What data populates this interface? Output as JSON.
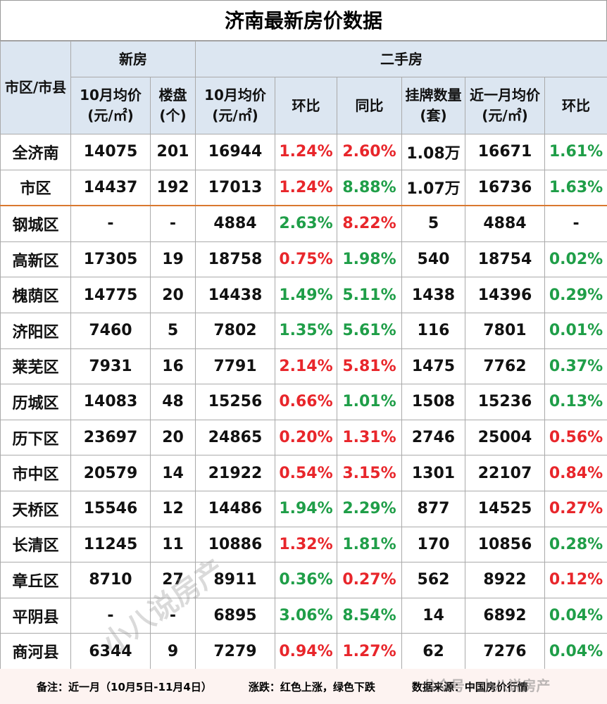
{
  "title": "济南最新房价数据",
  "table": {
    "header": {
      "row1": [
        "市区/市县",
        "新房",
        "二手房"
      ],
      "row2": [
        "10月均价(元/㎡)",
        "楼盘(个)",
        "10月均价(元/㎡)",
        "环比",
        "同比",
        "挂牌数量(套)",
        "近一月均价(元/㎡)",
        "环比"
      ]
    },
    "rows": [
      [
        "全济南",
        "14075",
        "201",
        "16944",
        {
          "text": "1.24%",
          "color": "#e8262b"
        },
        {
          "text": "2.60%",
          "color": "#e8262b"
        },
        "1.08万",
        "16671",
        {
          "text": "1.61%",
          "color": "#1f9e48"
        }
      ],
      [
        "市区",
        "14437",
        "192",
        "17013",
        {
          "text": "1.24%",
          "color": "#e8262b"
        },
        {
          "text": "8.88%",
          "color": "#1f9e48"
        },
        "1.07万",
        "16736",
        {
          "text": "1.63%",
          "color": "#1f9e48"
        }
      ],
      [
        "钢城区",
        "-",
        "-",
        "4884",
        {
          "text": "2.63%",
          "color": "#1f9e48"
        },
        {
          "text": "8.22%",
          "color": "#e8262b"
        },
        "5",
        "4884",
        "-"
      ],
      [
        "高新区",
        "17305",
        "19",
        "18758",
        {
          "text": "0.75%",
          "color": "#e8262b"
        },
        {
          "text": "1.98%",
          "color": "#1f9e48"
        },
        "540",
        "18754",
        {
          "text": "0.02%",
          "color": "#1f9e48"
        }
      ],
      [
        "槐荫区",
        "14775",
        "20",
        "14438",
        {
          "text": "1.49%",
          "color": "#1f9e48"
        },
        {
          "text": "5.11%",
          "color": "#1f9e48"
        },
        "1438",
        "14396",
        {
          "text": "0.29%",
          "color": "#1f9e48"
        }
      ],
      [
        "济阳区",
        "7460",
        "5",
        "7802",
        {
          "text": "1.35%",
          "color": "#1f9e48"
        },
        {
          "text": "5.61%",
          "color": "#1f9e48"
        },
        "116",
        "7801",
        {
          "text": "0.01%",
          "color": "#1f9e48"
        }
      ],
      [
        "莱芜区",
        "7931",
        "16",
        "7791",
        {
          "text": "2.14%",
          "color": "#e8262b"
        },
        {
          "text": "5.81%",
          "color": "#e8262b"
        },
        "1475",
        "7762",
        {
          "text": "0.37%",
          "color": "#1f9e48"
        }
      ],
      [
        "历城区",
        "14083",
        "48",
        "15256",
        {
          "text": "0.66%",
          "color": "#e8262b"
        },
        {
          "text": "1.01%",
          "color": "#1f9e48"
        },
        "1508",
        "15236",
        {
          "text": "0.13%",
          "color": "#1f9e48"
        }
      ],
      [
        "历下区",
        "23697",
        "20",
        "24865",
        {
          "text": "0.20%",
          "color": "#e8262b"
        },
        {
          "text": "1.31%",
          "color": "#e8262b"
        },
        "2746",
        "25004",
        {
          "text": "0.56%",
          "color": "#e8262b"
        }
      ],
      [
        "市中区",
        "20579",
        "14",
        "21922",
        {
          "text": "0.54%",
          "color": "#e8262b"
        },
        {
          "text": "3.15%",
          "color": "#e8262b"
        },
        "1301",
        "22107",
        {
          "text": "0.84%",
          "color": "#e8262b"
        }
      ],
      [
        "天桥区",
        "15546",
        "12",
        "14486",
        {
          "text": "1.94%",
          "color": "#1f9e48"
        },
        {
          "text": "2.29%",
          "color": "#1f9e48"
        },
        "877",
        "14525",
        {
          "text": "0.27%",
          "color": "#e8262b"
        }
      ],
      [
        "长清区",
        "11245",
        "11",
        "10886",
        {
          "text": "1.32%",
          "color": "#e8262b"
        },
        {
          "text": "1.81%",
          "color": "#1f9e48"
        },
        "170",
        "10856",
        {
          "text": "0.28%",
          "color": "#1f9e48"
        }
      ],
      [
        "章丘区",
        "8710",
        "27",
        "8911",
        {
          "text": "0.36%",
          "color": "#1f9e48"
        },
        {
          "text": "0.27%",
          "color": "#e8262b"
        },
        "562",
        "8922",
        {
          "text": "0.12%",
          "color": "#e8262b"
        }
      ],
      [
        "平阴县",
        "-",
        "-",
        "6895",
        {
          "text": "3.06%",
          "color": "#1f9e48"
        },
        {
          "text": "8.54%",
          "color": "#1f9e48"
        },
        "14",
        "6892",
        {
          "text": "0.04%",
          "color": "#1f9e48"
        }
      ],
      [
        "商河县",
        "6344",
        "9",
        "7279",
        {
          "text": "0.94%",
          "color": "#e8262b"
        },
        {
          "text": "1.27%",
          "color": "#e8262b"
        },
        "62",
        "7276",
        {
          "text": "0.04%",
          "color": "#1f9e48"
        }
      ]
    ]
  },
  "footer": [
    "备注：近一月（10月5日-11月4日）",
    "涨跌：红色上涨，绿色下跌",
    "数据来源：中国房价行情"
  ],
  "watermarks": [
    "小八说房产",
    "公众号 · 小八说房产"
  ]
}
